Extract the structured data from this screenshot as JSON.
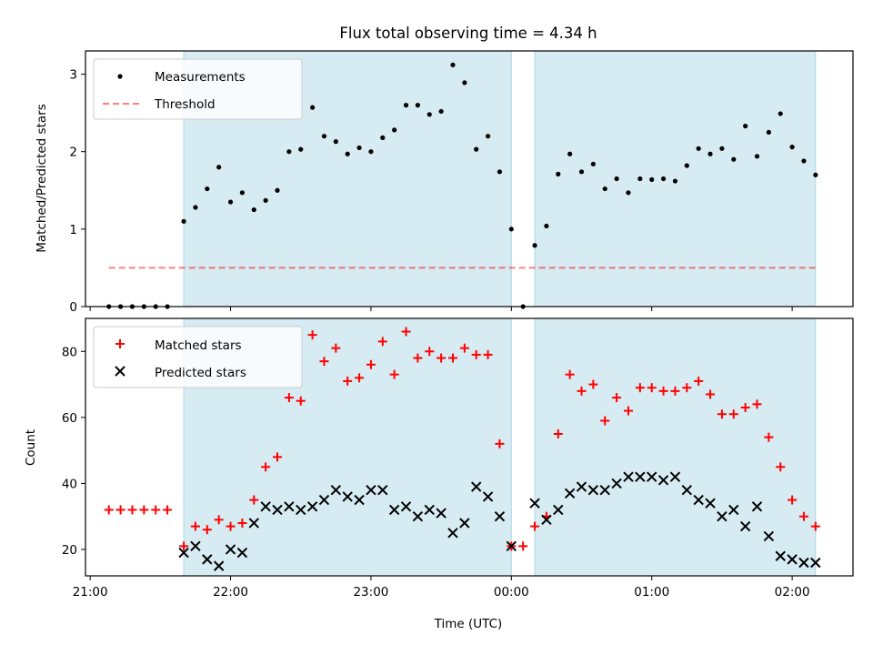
{
  "chart_data": {
    "type": "scatter",
    "title": "Flux total observing time = 4.34 h",
    "xlabel": "Time (UTC)",
    "x_ticks": [
      "21:00",
      "22:00",
      "23:00",
      "00:00",
      "01:00",
      "02:00"
    ],
    "x_tick_times": [
      "2000-01-01T21:00",
      "2000-01-01T22:00",
      "2000-01-01T23:00",
      "2000-01-02T00:00",
      "2000-01-02T01:00",
      "2000-01-02T02:00"
    ],
    "xlim": [
      "2000-01-01T20:58",
      "2000-01-02T02:26"
    ],
    "shaded_intervals": [
      [
        "2000-01-01T21:40",
        "2000-01-02T00:00"
      ],
      [
        "2000-01-02T00:10",
        "2000-01-02T02:10"
      ]
    ],
    "colors": {
      "shade": "#add8e6",
      "matched": "#ff0000",
      "predicted": "#000000",
      "threshold": "#ff0000"
    },
    "times": [
      "2000-01-01T21:08",
      "2000-01-01T21:13",
      "2000-01-01T21:18",
      "2000-01-01T21:23",
      "2000-01-01T21:28",
      "2000-01-01T21:33",
      "2000-01-01T21:40",
      "2000-01-01T21:45",
      "2000-01-01T21:50",
      "2000-01-01T21:55",
      "2000-01-01T22:00",
      "2000-01-01T22:05",
      "2000-01-01T22:10",
      "2000-01-01T22:15",
      "2000-01-01T22:20",
      "2000-01-01T22:25",
      "2000-01-01T22:30",
      "2000-01-01T22:35",
      "2000-01-01T22:40",
      "2000-01-01T22:45",
      "2000-01-01T22:50",
      "2000-01-01T22:55",
      "2000-01-01T23:00",
      "2000-01-01T23:05",
      "2000-01-01T23:10",
      "2000-01-01T23:15",
      "2000-01-01T23:20",
      "2000-01-01T23:25",
      "2000-01-01T23:30",
      "2000-01-01T23:35",
      "2000-01-01T23:40",
      "2000-01-01T23:45",
      "2000-01-01T23:50",
      "2000-01-01T23:55",
      "2000-01-02T00:00",
      "2000-01-02T00:05",
      "2000-01-02T00:10",
      "2000-01-02T00:15",
      "2000-01-02T00:20",
      "2000-01-02T00:25",
      "2000-01-02T00:30",
      "2000-01-02T00:35",
      "2000-01-02T00:40",
      "2000-01-02T00:45",
      "2000-01-02T00:50",
      "2000-01-02T00:55",
      "2000-01-02T01:00",
      "2000-01-02T01:05",
      "2000-01-02T01:10",
      "2000-01-02T01:15",
      "2000-01-02T01:20",
      "2000-01-02T01:25",
      "2000-01-02T01:30",
      "2000-01-02T01:35",
      "2000-01-02T01:40",
      "2000-01-02T01:45",
      "2000-01-02T01:50",
      "2000-01-02T01:55",
      "2000-01-02T02:00",
      "2000-01-02T02:05",
      "2000-01-02T02:10"
    ],
    "panels": [
      {
        "ylabel": "Matched/Predicted stars",
        "ylim": [
          0,
          3.3
        ],
        "yticks": [
          0,
          1,
          2,
          3
        ],
        "series": [
          {
            "name": "Measurements",
            "marker": "dot",
            "values": [
              0,
              0,
              0,
              0,
              0,
              0,
              1.1,
              1.28,
              1.52,
              1.8,
              1.35,
              1.47,
              1.25,
              1.37,
              1.5,
              2.0,
              2.03,
              2.57,
              2.2,
              2.13,
              1.97,
              2.05,
              2.0,
              2.18,
              2.28,
              2.6,
              2.6,
              2.48,
              2.52,
              3.12,
              2.89,
              2.03,
              2.2,
              1.74,
              1.0,
              0,
              0.79,
              1.04,
              1.71,
              1.97,
              1.74,
              1.84,
              1.52,
              1.65,
              1.47,
              1.65,
              1.64,
              1.65,
              1.62,
              1.82,
              2.04,
              1.97,
              2.04,
              1.9,
              2.33,
              1.94,
              2.25,
              2.49,
              2.06,
              1.88,
              1.7
            ]
          }
        ],
        "threshold": {
          "name": "Threshold",
          "value": 0.5,
          "from": "2000-01-01T21:08",
          "to": "2000-01-02T02:10"
        }
      },
      {
        "ylabel": "Count",
        "ylim": [
          12,
          90
        ],
        "yticks": [
          20,
          40,
          60,
          80
        ],
        "series": [
          {
            "name": "Matched stars",
            "marker": "plus",
            "values": [
              32,
              32,
              32,
              32,
              32,
              32,
              21,
              27,
              26,
              29,
              27,
              28,
              35,
              45,
              48,
              66,
              65,
              85,
              77,
              81,
              71,
              72,
              76,
              83,
              73,
              86,
              78,
              80,
              78,
              78,
              81,
              79,
              79,
              52,
              21,
              21,
              27,
              30,
              55,
              73,
              68,
              70,
              59,
              66,
              62,
              69,
              69,
              68,
              68,
              69,
              71,
              67,
              61,
              61,
              63,
              64,
              54,
              45,
              35,
              30,
              27
            ]
          },
          {
            "name": "Predicted stars",
            "marker": "x",
            "values": [
              null,
              null,
              null,
              null,
              null,
              null,
              19,
              21,
              17,
              15,
              20,
              19,
              28,
              33,
              32,
              33,
              32,
              33,
              35,
              38,
              36,
              35,
              38,
              38,
              32,
              33,
              30,
              32,
              31,
              25,
              28,
              39,
              36,
              30,
              21,
              null,
              34,
              29,
              32,
              37,
              39,
              38,
              38,
              40,
              42,
              42,
              42,
              41,
              42,
              38,
              35,
              34,
              30,
              32,
              27,
              33,
              24,
              18,
              17,
              16,
              16
            ]
          }
        ]
      }
    ]
  }
}
